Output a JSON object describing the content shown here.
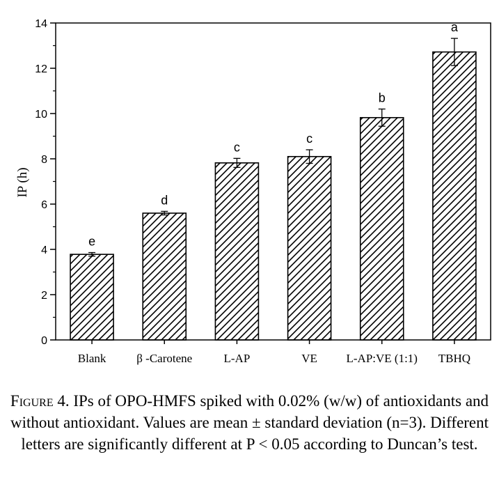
{
  "chart_data": {
    "type": "bar",
    "categories": [
      "Blank",
      "β -Carotene",
      "L-AP",
      "VE",
      "L-AP:VE (1:1)",
      "TBHQ"
    ],
    "values": [
      3.78,
      5.6,
      7.82,
      8.1,
      9.82,
      12.72
    ],
    "errors": [
      0.08,
      0.08,
      0.2,
      0.3,
      0.38,
      0.6
    ],
    "significance_letters": [
      "e",
      "d",
      "c",
      "c",
      "b",
      "a"
    ],
    "xlabel": "",
    "ylabel": "IP (h)",
    "ylim": [
      0,
      14
    ],
    "yticks": [
      0,
      2,
      4,
      6,
      8,
      10,
      12,
      14
    ],
    "bar_fill": "hatched diagonal",
    "grid": false,
    "colors": {
      "bar_stroke": "#000000",
      "background": "#ffffff"
    }
  },
  "caption": {
    "label": "Figure 4.",
    "text": "IPs of OPO-HMFS spiked with 0.02% (w/w) of antioxidants and without antioxidant. Values are mean ± standard deviation (n=3). Different letters are significantly different at P < 0.05 according to Duncan’s test."
  }
}
